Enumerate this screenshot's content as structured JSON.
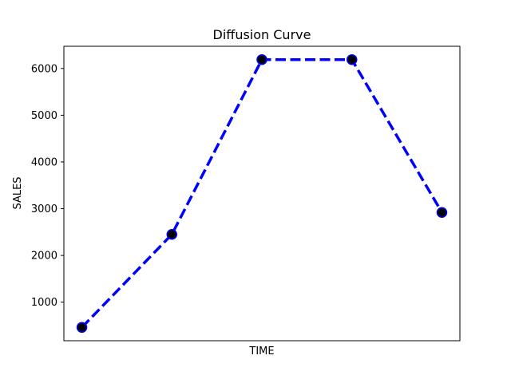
{
  "chart_data": {
    "type": "line",
    "title": "Diffusion Curve",
    "xlabel": "TIME",
    "ylabel": "SALES",
    "x": [
      1,
      2,
      3,
      4,
      5
    ],
    "series": [
      {
        "values": [
          460,
          2450,
          6190,
          6190,
          2920
        ]
      }
    ],
    "xlim": [
      0.8,
      5.2
    ],
    "ylim": [
      175,
      6475
    ],
    "yticks": [
      1000,
      2000,
      3000,
      4000,
      5000,
      6000
    ],
    "show_xticks": false,
    "grid": false,
    "line_color": "#0000ff",
    "line_style": "dashed",
    "marker_color": "#000000",
    "marker_edge_color": "#0000ff"
  }
}
